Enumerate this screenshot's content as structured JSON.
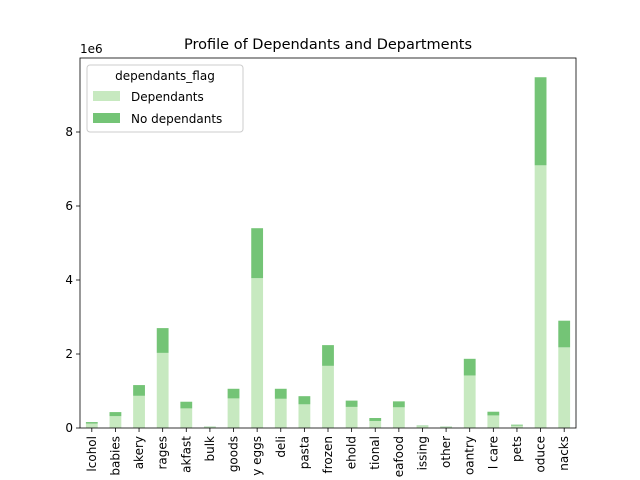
{
  "chart_data": {
    "type": "bar",
    "stacked": true,
    "title": "Profile of Dependants and Departments",
    "xlabel": "",
    "ylabel": "",
    "y_scale_label": "1e6",
    "ylim": [
      0,
      10000000
    ],
    "yticks": [
      0,
      2000000,
      4000000,
      6000000,
      8000000
    ],
    "ytick_labels": [
      "0",
      "2",
      "4",
      "6",
      "8"
    ],
    "categories": [
      "lcohol",
      "babies",
      "akery",
      "rages",
      "akfast",
      "bulk",
      "goods",
      "y eggs",
      "deli",
      "pasta",
      "frozen",
      "ehold",
      "tional",
      "eafood",
      "issing",
      "other",
      "oantry",
      "l care",
      "pets",
      "oduce",
      "nacks"
    ],
    "series": [
      {
        "name": "Dependants",
        "color": "#c7e9c0",
        "values": [
          120000,
          320000,
          870000,
          2030000,
          530000,
          25000,
          800000,
          4050000,
          790000,
          640000,
          1680000,
          570000,
          190000,
          560000,
          50000,
          25000,
          1420000,
          340000,
          65000,
          7100000,
          2180000
        ]
      },
      {
        "name": "No dependants",
        "color": "#74c476",
        "values": [
          40000,
          110000,
          290000,
          670000,
          180000,
          10000,
          260000,
          1350000,
          270000,
          220000,
          560000,
          170000,
          80000,
          160000,
          15000,
          10000,
          450000,
          100000,
          25000,
          2380000,
          720000
        ]
      }
    ],
    "legend": {
      "title": "dependants_flag",
      "position": "top-left"
    },
    "grid": false
  }
}
